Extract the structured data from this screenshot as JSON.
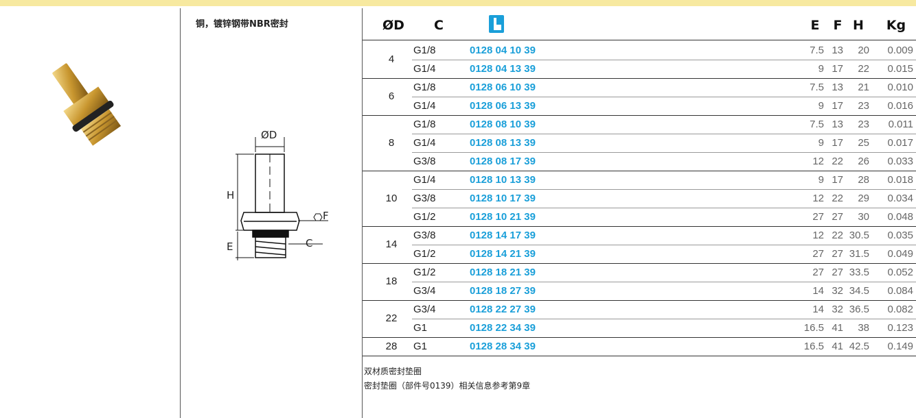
{
  "header": {
    "subtitle": "铜，镀锌钢带NBR密封"
  },
  "diagram": {
    "labels": {
      "d": "ØD",
      "h": "H",
      "f": "F",
      "e": "E",
      "c": "C"
    }
  },
  "table": {
    "columns": [
      "ØD",
      "C",
      "E",
      "F",
      "H",
      "Kg"
    ],
    "groups": [
      {
        "d": "4",
        "rows": [
          [
            "G1/8",
            "0128 04 10 39",
            "7.5",
            "13",
            "20",
            "0.009"
          ],
          [
            "G1/4",
            "0128 04 13 39",
            "9",
            "17",
            "22",
            "0.015"
          ]
        ]
      },
      {
        "d": "6",
        "rows": [
          [
            "G1/8",
            "0128 06 10 39",
            "7.5",
            "13",
            "21",
            "0.010"
          ],
          [
            "G1/4",
            "0128 06 13 39",
            "9",
            "17",
            "23",
            "0.016"
          ]
        ]
      },
      {
        "d": "8",
        "rows": [
          [
            "G1/8",
            "0128 08 10 39",
            "7.5",
            "13",
            "23",
            "0.011"
          ],
          [
            "G1/4",
            "0128 08 13 39",
            "9",
            "17",
            "25",
            "0.017"
          ],
          [
            "G3/8",
            "0128 08 17 39",
            "12",
            "22",
            "26",
            "0.033"
          ]
        ]
      },
      {
        "d": "10",
        "rows": [
          [
            "G1/4",
            "0128 10 13 39",
            "9",
            "17",
            "28",
            "0.018"
          ],
          [
            "G3/8",
            "0128 10 17 39",
            "12",
            "22",
            "29",
            "0.034"
          ],
          [
            "G1/2",
            "0128 10 21 39",
            "27",
            "27",
            "30",
            "0.048"
          ]
        ]
      },
      {
        "d": "14",
        "rows": [
          [
            "G3/8",
            "0128 14 17 39",
            "12",
            "22",
            "30.5",
            "0.035"
          ],
          [
            "G1/2",
            "0128 14 21 39",
            "27",
            "27",
            "31.5",
            "0.049"
          ]
        ]
      },
      {
        "d": "18",
        "rows": [
          [
            "G1/2",
            "0128 18 21 39",
            "27",
            "27",
            "33.5",
            "0.052"
          ],
          [
            "G3/4",
            "0128 18 27 39",
            "14",
            "32",
            "34.5",
            "0.084"
          ]
        ]
      },
      {
        "d": "22",
        "rows": [
          [
            "G3/4",
            "0128 22 27 39",
            "14",
            "32",
            "36.5",
            "0.082"
          ],
          [
            "G1",
            "0128 22 34 39",
            "16.5",
            "41",
            "38",
            "0.123"
          ]
        ]
      },
      {
        "d": "28",
        "rows": [
          [
            "G1",
            "0128 28 34 39",
            "16.5",
            "41",
            "42.5",
            "0.149"
          ]
        ]
      }
    ]
  },
  "notes": [
    "双材质密封垫圈",
    "密封垫圈（部件号0139）相关信息参考第9章"
  ]
}
